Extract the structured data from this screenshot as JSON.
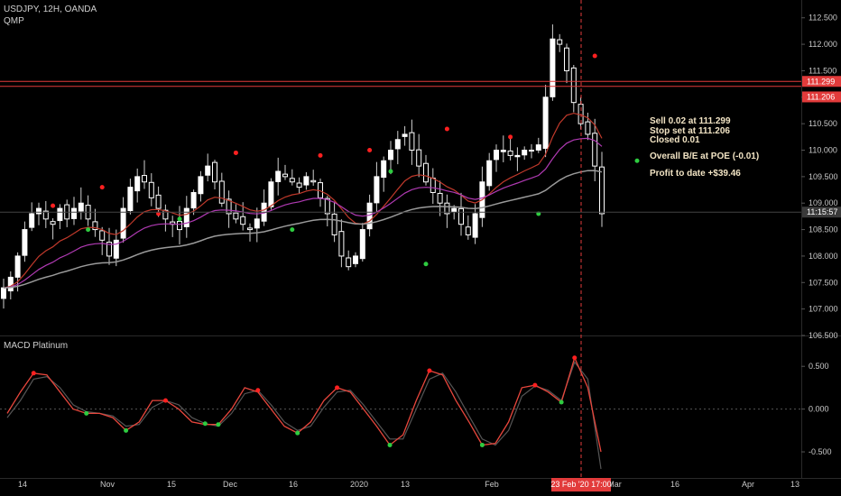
{
  "header": {
    "symbol": "USDJPY, 12H, OANDA",
    "study": "QMP"
  },
  "macd_panel": {
    "title": "MACD Platinum"
  },
  "notes": {
    "line1": "Sell 0.02 at 111.299",
    "line2": "Stop set at 111.206",
    "line3": "Closed 0.01",
    "line4": "Overall B/E at POE (-0.01)",
    "line5": "Profit to date +$39.46"
  },
  "colors": {
    "bull": "#ffffff",
    "bear": "#ffffff",
    "wick": "#cfcfcf",
    "ema_fast": "#c0392b",
    "ema_mid": "#b03ab3",
    "ema_slow": "#9a9a9a",
    "macd": "#e8463c",
    "signal": "#555555",
    "dot_red": "#ff2020",
    "dot_green": "#2ecc40",
    "level_line": "#e23b3b",
    "axis_badge_red": "#e23b3b",
    "axis_badge_grey": "#3a3a3a"
  },
  "chart_data": [
    {
      "type": "candlestick",
      "title": "USDJPY, 12H, OANDA",
      "ylim": [
        106.5,
        112.7
      ],
      "y_ticks": [
        "112.500",
        "112.000",
        "111.500",
        "111.000",
        "110.500",
        "110.000",
        "109.500",
        "109.000",
        "108.500",
        "108.000",
        "107.500",
        "107.000",
        "106.500"
      ],
      "x_labels": [
        "14",
        "Nov",
        "15",
        "Dec",
        "16",
        "2020",
        "13",
        "Feb",
        "23 Feb '20 17:00",
        "Mar",
        "16",
        "Apr",
        "13"
      ],
      "price_labels": {
        "level_1": "111.299",
        "level_2": "111.206",
        "countdown": "11:15:57"
      },
      "levels": [
        111.299,
        111.206
      ],
      "last_price": 108.83,
      "marked_time": "23 Feb '20 17:00",
      "close_path": [
        107.4,
        107.6,
        108.0,
        108.5,
        108.8,
        108.9,
        108.7,
        108.6,
        108.9,
        108.7,
        108.9,
        109.0,
        108.7,
        108.5,
        108.3,
        108.0,
        108.3,
        108.9,
        109.3,
        109.5,
        109.4,
        109.1,
        108.9,
        108.7,
        108.6,
        108.5,
        108.9,
        109.2,
        109.5,
        109.7,
        109.4,
        109.0,
        108.8,
        108.7,
        108.6,
        108.5,
        108.7,
        109.0,
        109.4,
        109.6,
        109.5,
        109.4,
        109.3,
        109.5,
        109.4,
        109.1,
        108.8,
        108.4,
        108.0,
        107.8,
        108.0,
        108.5,
        109.0,
        109.5,
        109.8,
        110.0,
        110.2,
        110.3,
        110.0,
        109.7,
        109.4,
        109.2,
        109.0,
        108.8,
        108.9,
        108.6,
        108.4,
        108.8,
        109.4,
        109.8,
        110.0,
        110.0,
        109.9,
        109.9,
        110.0,
        110.0,
        110.1,
        111.0,
        112.1,
        112.0,
        111.5,
        110.9,
        110.5,
        110.3,
        109.7,
        108.8
      ],
      "sell_signals": [
        [
          7,
          108.95
        ],
        [
          14,
          109.3
        ],
        [
          22,
          108.8
        ],
        [
          33,
          109.95
        ],
        [
          45,
          109.9
        ],
        [
          52,
          110.0
        ],
        [
          63,
          110.4
        ],
        [
          72,
          110.25
        ],
        [
          84,
          111.78
        ]
      ],
      "buy_signals": [
        [
          12,
          108.5
        ],
        [
          25,
          108.7
        ],
        [
          41,
          108.5
        ],
        [
          55,
          109.6
        ],
        [
          60,
          107.85
        ],
        [
          76,
          108.8
        ],
        [
          90,
          109.8
        ]
      ]
    },
    {
      "type": "line",
      "title": "MACD Platinum",
      "ylim": [
        -0.7,
        0.65
      ],
      "y_ticks": [
        "0.500",
        "0.000",
        "-0.500"
      ],
      "series": [
        {
          "values": [
            -0.05,
            0.2,
            0.42,
            0.4,
            0.2,
            0.0,
            -0.05,
            -0.05,
            -0.1,
            -0.25,
            -0.15,
            0.1,
            0.1,
            0.0,
            -0.15,
            -0.18,
            -0.18,
            0.0,
            0.25,
            0.2,
            0.0,
            -0.2,
            -0.28,
            -0.15,
            0.1,
            0.25,
            0.2,
            0.0,
            -0.2,
            -0.42,
            -0.3,
            0.1,
            0.45,
            0.4,
            0.1,
            -0.15,
            -0.42,
            -0.4,
            -0.15,
            0.25,
            0.28,
            0.2,
            0.08,
            0.6,
            0.25,
            -0.5
          ]
        },
        {
          "values": [
            -0.1,
            0.1,
            0.35,
            0.38,
            0.25,
            0.05,
            -0.03,
            -0.05,
            -0.08,
            -0.2,
            -0.18,
            0.02,
            0.1,
            0.05,
            -0.1,
            -0.17,
            -0.2,
            -0.05,
            0.18,
            0.22,
            0.05,
            -0.15,
            -0.25,
            -0.2,
            0.02,
            0.2,
            0.22,
            0.05,
            -0.15,
            -0.35,
            -0.35,
            0.0,
            0.35,
            0.42,
            0.2,
            -0.08,
            -0.35,
            -0.42,
            -0.25,
            0.15,
            0.27,
            0.22,
            0.1,
            0.55,
            0.35,
            -0.7
          ]
        }
      ],
      "sell_signals": [
        [
          2,
          0.42
        ],
        [
          12,
          0.1
        ],
        [
          19,
          0.22
        ],
        [
          25,
          0.25
        ],
        [
          32,
          0.45
        ],
        [
          40,
          0.28
        ],
        [
          43,
          0.6
        ]
      ],
      "buy_signals": [
        [
          6,
          -0.05
        ],
        [
          9,
          -0.25
        ],
        [
          15,
          -0.17
        ],
        [
          16,
          -0.18
        ],
        [
          22,
          -0.28
        ],
        [
          29,
          -0.42
        ],
        [
          36,
          -0.42
        ],
        [
          42,
          0.08
        ]
      ]
    }
  ]
}
